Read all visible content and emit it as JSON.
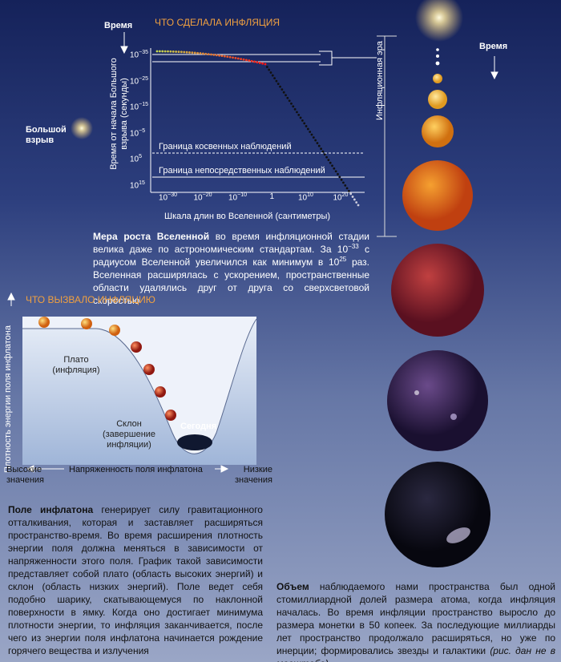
{
  "chart": {
    "time_label": "Время",
    "title": "ЧТО СДЕЛАЛА ИНФЛЯЦИЯ",
    "y_label": "Время от начала Большого взрыва (секунды)",
    "y_ticks": [
      {
        "base": "10",
        "exp": "−35"
      },
      {
        "base": "10",
        "exp": "−25"
      },
      {
        "base": "10",
        "exp": "−15"
      },
      {
        "base": "10",
        "exp": "−5"
      },
      {
        "base": "10",
        "exp": "5"
      },
      {
        "base": "10",
        "exp": "15"
      }
    ],
    "x_ticks": [
      {
        "base": "10",
        "exp": "−30"
      },
      {
        "base": "10",
        "exp": "−20"
      },
      {
        "base": "10",
        "exp": "−10"
      },
      {
        "base": "1"
      },
      {
        "base": "10",
        "exp": "10"
      },
      {
        "base": "10",
        "exp": "20"
      }
    ],
    "indirect": "Граница косвенных наблюдений",
    "direct": "Граница непосредственных наблюдений",
    "x_label": "Шкала длин во Вселенной (сантиметры)"
  },
  "big_bang": "Большой взрыв",
  "inflation_era": "Инфляционная эра",
  "time_right": "Время",
  "caption_growth": {
    "bold": "Мера роста Вселенной",
    "text_1": " во время инфляционной стадии велика даже по астрономическим стандартам. За 10",
    "sup_1": "−33",
    "text_2": " с радиусом Вселенной увеличился как минимум в 10",
    "sup_2": "25",
    "text_3": " раз. Вселенная расширялась с ускорением, пространственные области удалялись друг от друга со сверхсветовой скоростью"
  },
  "potential": {
    "title": "ЧТО ВЫЗВАЛО ИНФЛЯЦИЮ",
    "y_label": "Плотность энергии поля инфлатона",
    "plateau": "Плато (инфляция)",
    "slope": "Склон (завершение инфляции)",
    "today": "Сегодня",
    "high": "Высокие значения",
    "x_label": "Напряженность поля инфлатона",
    "low": "Низкие значения"
  },
  "caption_field": {
    "bold": "Поле инфлатона",
    "text": " генерирует силу гравитационного отталкивания, которая и заставляет расширяться пространство-время. Во время расширения плотность энергии поля должна меняться в зависимости от напряженности этого поля. График такой зависимости представляет собой плато (область высоких энергий) и склон (область низких энергий). Поле ведет себя подобно шарику, скатывающемуся по наклонной поверхности в ямку. Когда оно достигает минимума плотности энергии, то инфляция заканчивается, после чего из энергии поля инфлатона начинается рождение горячего вещества и излучения"
  },
  "caption_volume": {
    "bold": "Объем",
    "text": " наблюдаемого нами пространства был одной стомиллиардной долей размера атома, когда инфляция началась. Во время инфляции пространство выросло до размера монетки в 50 копеек. За последующие миллиарды лет пространство продолжало расширяться, но уже по инерции; формировались звезды и галактики ",
    "italic": "(рис. дан не в масштабе)"
  }
}
